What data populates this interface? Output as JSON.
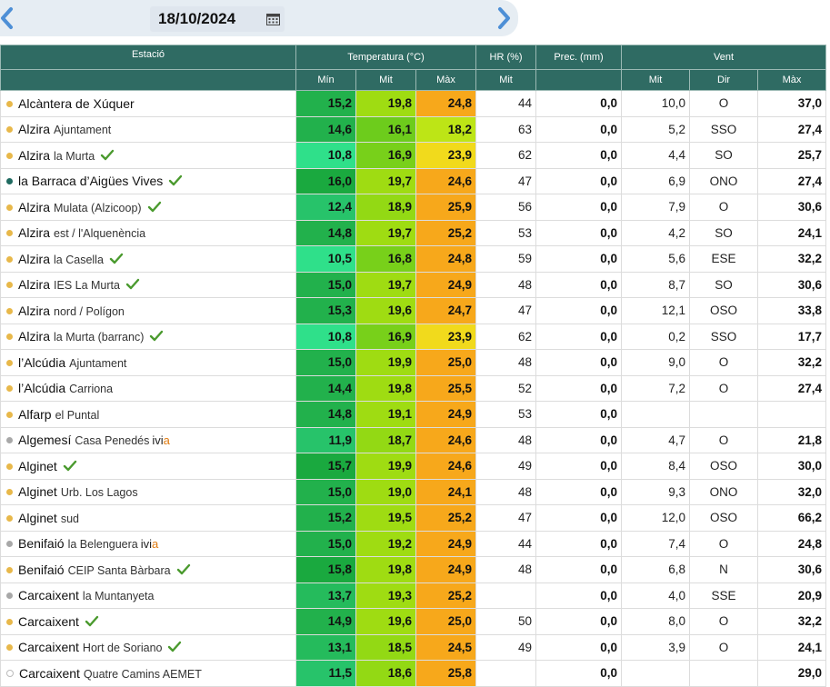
{
  "header": {
    "date": "18/10/2024",
    "nav_prev": "previous-day",
    "nav_next": "next-day"
  },
  "columns": {
    "station": "Estació",
    "temperature": "Temperatura (°C)",
    "hr": "HR (%)",
    "prec": "Prec. (mm)",
    "wind": "Vent",
    "min": "Mín",
    "mit": "Mit",
    "max": "Màx",
    "hr_mit": "Mit",
    "wind_mit": "Mit",
    "wind_dir": "Dir",
    "wind_max": "Màx"
  },
  "colors": {
    "header_bg": "#2f6b63",
    "dot_yellow": "#e8b84a",
    "dot_teal": "#1f6a60",
    "dot_gray": "#a8a8a8",
    "check_green": "#4a9a2e",
    "ivia_orange": "#e07b10"
  },
  "rows": [
    {
      "name": "Alcàntera de Xúquer",
      "sub": "",
      "check": false,
      "ivia": false,
      "dot": "yellow",
      "min": "15,2",
      "mit": "19,8",
      "max": "24,8",
      "hr": "44",
      "prec": "0,0",
      "wmit": "10,0",
      "wdir": "O",
      "wmax": "37,0",
      "cmin": "#22b14c",
      "cmit": "#9fdc12",
      "cmax": "#f7a81b"
    },
    {
      "name": "Alzira",
      "sub": "Ajuntament",
      "check": false,
      "ivia": false,
      "dot": "yellow",
      "min": "14,6",
      "mit": "16,1",
      "max": "18,2",
      "hr": "63",
      "prec": "0,0",
      "wmit": "5,2",
      "wdir": "SSO",
      "wmax": "27,4",
      "cmin": "#22b14c",
      "cmit": "#6dcc1c",
      "cmax": "#bde516"
    },
    {
      "name": "Alzira",
      "sub": "la Murta",
      "check": true,
      "ivia": false,
      "dot": "yellow",
      "min": "10,8",
      "mit": "16,9",
      "max": "23,9",
      "hr": "62",
      "prec": "0,0",
      "wmit": "4,4",
      "wdir": "SO",
      "wmax": "25,7",
      "cmin": "#2fe08a",
      "cmit": "#78d01a",
      "cmax": "#f1da1c"
    },
    {
      "name": "la Barraca d’Aigües Vives",
      "sub": "",
      "check": true,
      "ivia": false,
      "dot": "teal",
      "min": "16,0",
      "mit": "19,7",
      "max": "24,6",
      "hr": "47",
      "prec": "0,0",
      "wmit": "6,9",
      "wdir": "ONO",
      "wmax": "27,4",
      "cmin": "#1aa93f",
      "cmit": "#9fdc12",
      "cmax": "#f7a81b"
    },
    {
      "name": "Alzira",
      "sub": "Mulata (Alzicoop)",
      "check": true,
      "ivia": false,
      "dot": "yellow",
      "min": "12,4",
      "mit": "18,9",
      "max": "25,9",
      "hr": "56",
      "prec": "0,0",
      "wmit": "7,9",
      "wdir": "O",
      "wmax": "30,6",
      "cmin": "#27c36a",
      "cmit": "#93d914",
      "cmax": "#f7a81b"
    },
    {
      "name": "Alzira",
      "sub": "est / l'Alquenència",
      "check": false,
      "ivia": false,
      "dot": "yellow",
      "min": "14,8",
      "mit": "19,7",
      "max": "25,2",
      "hr": "53",
      "prec": "0,0",
      "wmit": "4,2",
      "wdir": "SO",
      "wmax": "24,1",
      "cmin": "#22b14c",
      "cmit": "#9fdc12",
      "cmax": "#f7a81b"
    },
    {
      "name": "Alzira",
      "sub": "la Casella",
      "check": true,
      "ivia": false,
      "dot": "yellow",
      "min": "10,5",
      "mit": "16,8",
      "max": "24,8",
      "hr": "59",
      "prec": "0,0",
      "wmit": "5,6",
      "wdir": "ESE",
      "wmax": "32,2",
      "cmin": "#2fe08a",
      "cmit": "#78d01a",
      "cmax": "#f7a81b"
    },
    {
      "name": "Alzira",
      "sub": "IES La Murta",
      "check": true,
      "ivia": false,
      "dot": "yellow",
      "min": "15,0",
      "mit": "19,7",
      "max": "24,9",
      "hr": "48",
      "prec": "0,0",
      "wmit": "8,7",
      "wdir": "SO",
      "wmax": "30,6",
      "cmin": "#22b14c",
      "cmit": "#9fdc12",
      "cmax": "#f7a81b"
    },
    {
      "name": "Alzira",
      "sub": "nord / Polígon",
      "check": false,
      "ivia": false,
      "dot": "yellow",
      "min": "15,3",
      "mit": "19,6",
      "max": "24,7",
      "hr": "47",
      "prec": "0,0",
      "wmit": "12,1",
      "wdir": "OSO",
      "wmax": "33,8",
      "cmin": "#22b14c",
      "cmit": "#9fdc12",
      "cmax": "#f7a81b"
    },
    {
      "name": "Alzira",
      "sub": "la Murta (barranc)",
      "check": true,
      "ivia": false,
      "dot": "yellow",
      "min": "10,8",
      "mit": "16,9",
      "max": "23,9",
      "hr": "62",
      "prec": "0,0",
      "wmit": "0,2",
      "wdir": "SSO",
      "wmax": "17,7",
      "cmin": "#2fe08a",
      "cmit": "#78d01a",
      "cmax": "#f1da1c"
    },
    {
      "name": "l’Alcúdia",
      "sub": "Ajuntament",
      "check": false,
      "ivia": false,
      "dot": "yellow",
      "min": "15,0",
      "mit": "19,9",
      "max": "25,0",
      "hr": "48",
      "prec": "0,0",
      "wmit": "9,0",
      "wdir": "O",
      "wmax": "32,2",
      "cmin": "#22b14c",
      "cmit": "#9fdc12",
      "cmax": "#f7a81b"
    },
    {
      "name": "l’Alcúdia",
      "sub": "Carriona",
      "check": false,
      "ivia": false,
      "dot": "yellow",
      "min": "14,4",
      "mit": "19,8",
      "max": "25,5",
      "hr": "52",
      "prec": "0,0",
      "wmit": "7,2",
      "wdir": "O",
      "wmax": "27,4",
      "cmin": "#22b14c",
      "cmit": "#9fdc12",
      "cmax": "#f7a81b"
    },
    {
      "name": "Alfarp",
      "sub": "el Puntal",
      "check": false,
      "ivia": false,
      "dot": "yellow",
      "min": "14,8",
      "mit": "19,1",
      "max": "24,9",
      "hr": "53",
      "prec": "0,0",
      "wmit": "",
      "wdir": "",
      "wmax": "",
      "cmin": "#22b14c",
      "cmit": "#9fdc12",
      "cmax": "#f7a81b"
    },
    {
      "name": "Algemesí",
      "sub": "Casa Penedés",
      "check": false,
      "ivia": true,
      "dot": "gray",
      "min": "11,9",
      "mit": "18,7",
      "max": "24,6",
      "hr": "48",
      "prec": "0,0",
      "wmit": "4,7",
      "wdir": "O",
      "wmax": "21,8",
      "cmin": "#27c36a",
      "cmit": "#93d914",
      "cmax": "#f7a81b"
    },
    {
      "name": "Alginet",
      "sub": "",
      "check": true,
      "ivia": false,
      "dot": "yellow",
      "min": "15,7",
      "mit": "19,9",
      "max": "24,6",
      "hr": "49",
      "prec": "0,0",
      "wmit": "8,4",
      "wdir": "OSO",
      "wmax": "30,0",
      "cmin": "#1aa93f",
      "cmit": "#9fdc12",
      "cmax": "#f7a81b"
    },
    {
      "name": "Alginet",
      "sub": "Urb. Los Lagos",
      "check": false,
      "ivia": false,
      "dot": "yellow",
      "min": "15,0",
      "mit": "19,0",
      "max": "24,1",
      "hr": "48",
      "prec": "0,0",
      "wmit": "9,3",
      "wdir": "ONO",
      "wmax": "32,0",
      "cmin": "#22b14c",
      "cmit": "#9fdc12",
      "cmax": "#f7a81b"
    },
    {
      "name": "Alginet",
      "sub": "sud",
      "check": false,
      "ivia": false,
      "dot": "yellow",
      "min": "15,2",
      "mit": "19,5",
      "max": "25,2",
      "hr": "47",
      "prec": "0,0",
      "wmit": "12,0",
      "wdir": "OSO",
      "wmax": "66,2",
      "cmin": "#22b14c",
      "cmit": "#9fdc12",
      "cmax": "#f7a81b"
    },
    {
      "name": "Benifaió",
      "sub": "la Belenguera",
      "check": false,
      "ivia": true,
      "dot": "gray",
      "min": "15,0",
      "mit": "19,2",
      "max": "24,9",
      "hr": "44",
      "prec": "0,0",
      "wmit": "7,4",
      "wdir": "O",
      "wmax": "24,8",
      "cmin": "#22b14c",
      "cmit": "#9fdc12",
      "cmax": "#f7a81b"
    },
    {
      "name": "Benifaió",
      "sub": "CEIP Santa Bàrbara",
      "check": true,
      "ivia": false,
      "dot": "yellow",
      "min": "15,8",
      "mit": "19,8",
      "max": "24,9",
      "hr": "48",
      "prec": "0,0",
      "wmit": "6,8",
      "wdir": "N",
      "wmax": "30,6",
      "cmin": "#1aa93f",
      "cmit": "#9fdc12",
      "cmax": "#f7a81b"
    },
    {
      "name": "Carcaixent",
      "sub": "la Muntanyeta",
      "check": false,
      "ivia": false,
      "dot": "gray",
      "min": "13,7",
      "mit": "19,3",
      "max": "25,2",
      "hr": "",
      "prec": "0,0",
      "wmit": "4,0",
      "wdir": "SSE",
      "wmax": "20,9",
      "cmin": "#25bb5c",
      "cmit": "#9fdc12",
      "cmax": "#f7a81b"
    },
    {
      "name": "Carcaixent",
      "sub": "",
      "check": true,
      "ivia": false,
      "dot": "yellow",
      "min": "14,9",
      "mit": "19,6",
      "max": "25,0",
      "hr": "50",
      "prec": "0,0",
      "wmit": "8,0",
      "wdir": "O",
      "wmax": "32,2",
      "cmin": "#22b14c",
      "cmit": "#9fdc12",
      "cmax": "#f7a81b"
    },
    {
      "name": "Carcaixent",
      "sub": "Hort de Soriano",
      "check": true,
      "ivia": false,
      "dot": "yellow",
      "min": "13,1",
      "mit": "18,5",
      "max": "24,5",
      "hr": "49",
      "prec": "0,0",
      "wmit": "3,9",
      "wdir": "O",
      "wmax": "24,1",
      "cmin": "#25bb5c",
      "cmit": "#93d914",
      "cmax": "#f7a81b"
    },
    {
      "name": "Carcaixent",
      "sub": "Quatre Camins AEMET",
      "check": false,
      "ivia": false,
      "dot": "empty",
      "min": "11,5",
      "mit": "18,6",
      "max": "25,8",
      "hr": "",
      "prec": "0,0",
      "wmit": "",
      "wdir": "",
      "wmax": "29,0",
      "cmin": "#27c36a",
      "cmit": "#93d914",
      "cmax": "#f7a81b"
    }
  ]
}
